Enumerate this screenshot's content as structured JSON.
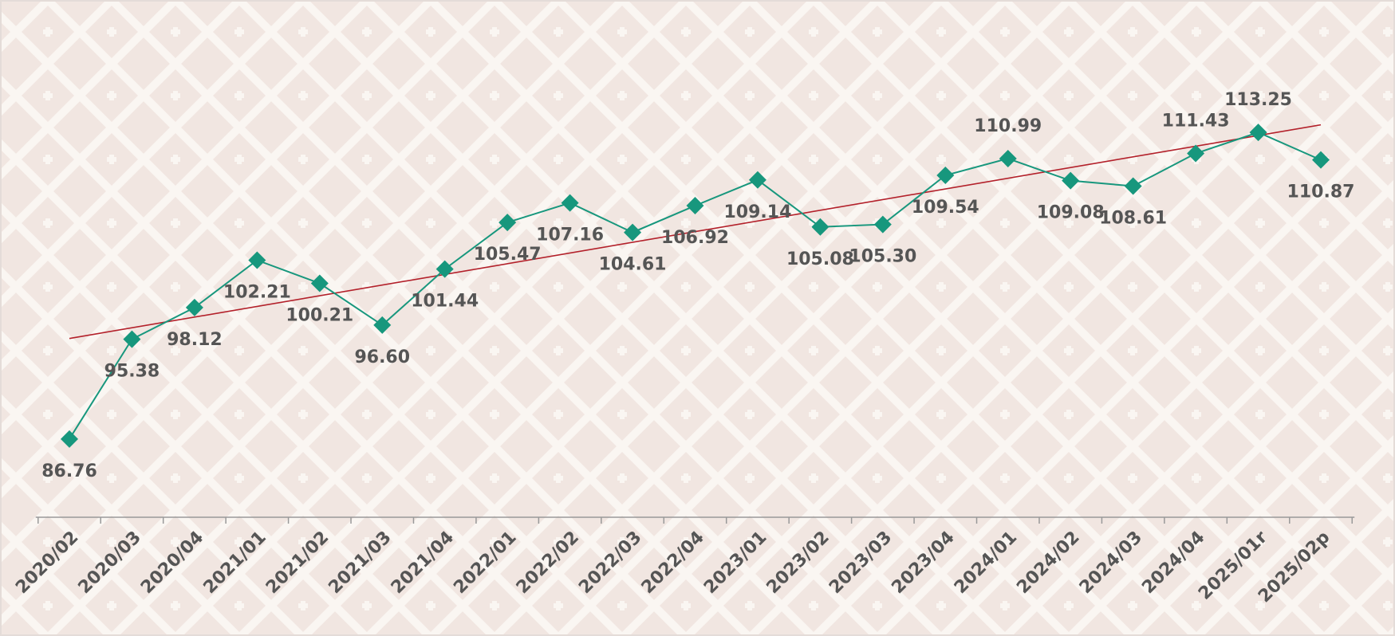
{
  "chart_data": {
    "type": "line",
    "categories": [
      "2020/02",
      "2020/03",
      "2020/04",
      "2021/01",
      "2021/02",
      "2021/03",
      "2021/04",
      "2022/01",
      "2022/02",
      "2022/03",
      "2022/04",
      "2023/01",
      "2023/02",
      "2023/03",
      "2023/04",
      "2024/01",
      "2024/02",
      "2024/03",
      "2024/04",
      "2025/01r",
      "2025/02p"
    ],
    "values": [
      86.76,
      95.38,
      98.12,
      102.21,
      100.21,
      96.6,
      101.44,
      105.47,
      107.16,
      104.61,
      106.92,
      109.14,
      105.08,
      105.3,
      109.54,
      110.99,
      109.08,
      108.61,
      111.43,
      113.25,
      110.87
    ],
    "value_labels": [
      "86.76",
      "95.38",
      "98.12",
      "102.21",
      "100.21",
      "96.60",
      "101.44",
      "105.47",
      "107.16",
      "104.61",
      "106.92",
      "109.14",
      "105.08",
      "105.30",
      "109.54",
      "110.99",
      "109.08",
      "108.61",
      "111.43",
      "113.25",
      "110.87"
    ],
    "color": "#17977d",
    "trendline": true,
    "trendline_color": "#b3202a",
    "ylim": [
      80,
      124
    ]
  }
}
